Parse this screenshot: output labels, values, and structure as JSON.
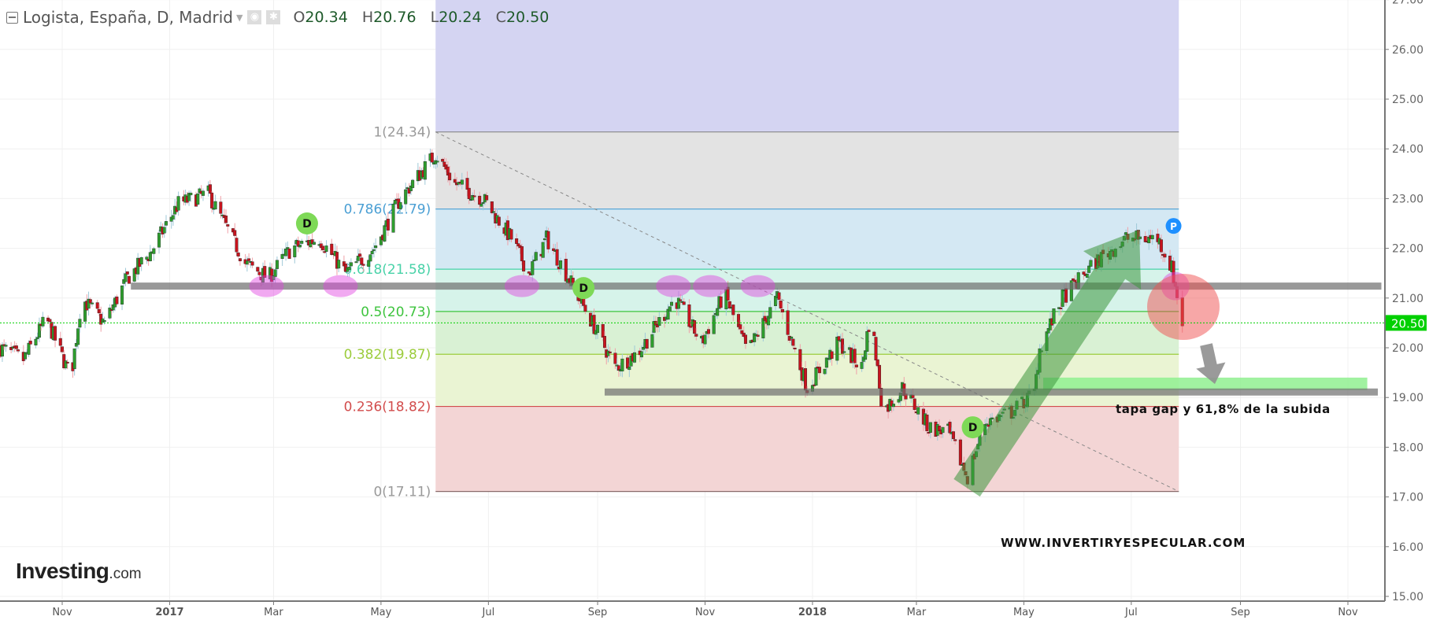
{
  "header": {
    "title": "Logista, España, D, Madrid",
    "open_label": "O",
    "open": "20.34",
    "high_label": "H",
    "high": "20.76",
    "low_label": "L",
    "low": "20.24",
    "close_label": "C",
    "close": "20.50",
    "icons": [
      "menu-icon",
      "visibility-icon",
      "settings-icon",
      "chevron-down-icon"
    ]
  },
  "logo": {
    "name": "Investing",
    "suffix": ".com"
  },
  "chart_data": {
    "type": "candlestick",
    "title": "Logista, España, D, Madrid",
    "ylim": [
      15,
      27
    ],
    "y_ticks": [
      "15.00",
      "16.00",
      "17.00",
      "18.00",
      "19.00",
      "20.00",
      "21.00",
      "22.00",
      "23.00",
      "24.00",
      "25.00",
      "26.00",
      "27.00"
    ],
    "x_ticks": [
      {
        "label": "Nov",
        "date": "2016-11-01"
      },
      {
        "label": "2017",
        "date": "2017-01-01"
      },
      {
        "label": "Mar",
        "date": "2017-03-01"
      },
      {
        "label": "May",
        "date": "2017-05-01"
      },
      {
        "label": "Jul",
        "date": "2017-07-01"
      },
      {
        "label": "Sep",
        "date": "2017-09-01"
      },
      {
        "label": "Nov",
        "date": "2017-11-01"
      },
      {
        "label": "2018",
        "date": "2018-01-01"
      },
      {
        "label": "Mar",
        "date": "2018-03-01"
      },
      {
        "label": "May",
        "date": "2018-05-01"
      },
      {
        "label": "Jul",
        "date": "2018-07-01"
      },
      {
        "label": "Sep",
        "date": "2018-09-01"
      },
      {
        "label": "Nov",
        "date": "2018-11-01"
      }
    ],
    "grid": true,
    "last_price": "20.50",
    "colors": {
      "up": "#2e9e2e",
      "down": "#c8141e",
      "last_price": "#00d000"
    },
    "approx_closes": [
      [
        "2016-09-27",
        20.0
      ],
      [
        "2016-10-10",
        19.76
      ],
      [
        "2016-10-23",
        20.59
      ],
      [
        "2016-11-06",
        19.4
      ],
      [
        "2016-11-12",
        21.0
      ],
      [
        "2016-11-25",
        20.5
      ],
      [
        "2016-12-08",
        21.4
      ],
      [
        "2016-12-21",
        21.9
      ],
      [
        "2017-01-06",
        22.9
      ],
      [
        "2017-01-23",
        23.1
      ],
      [
        "2017-02-01",
        22.5
      ],
      [
        "2017-02-13",
        21.7
      ],
      [
        "2017-02-26",
        21.4
      ],
      [
        "2017-03-11",
        22.0
      ],
      [
        "2017-03-27",
        22.2
      ],
      [
        "2017-04-11",
        21.5
      ],
      [
        "2017-04-27",
        22.0
      ],
      [
        "2017-05-12",
        23.0
      ],
      [
        "2017-06-01",
        23.9
      ],
      [
        "2017-06-12",
        23.3
      ],
      [
        "2017-06-28",
        23.0
      ],
      [
        "2017-07-14",
        22.2
      ],
      [
        "2017-07-24",
        21.5
      ],
      [
        "2017-08-03",
        22.2
      ],
      [
        "2017-08-14",
        21.5
      ],
      [
        "2017-09-01",
        20.3
      ],
      [
        "2017-09-11",
        19.6
      ],
      [
        "2017-09-24",
        19.9
      ],
      [
        "2017-10-15",
        21.0
      ],
      [
        "2017-10-30",
        20.1
      ],
      [
        "2017-11-12",
        21.1
      ],
      [
        "2017-11-25",
        19.9
      ],
      [
        "2017-12-12",
        21.0
      ],
      [
        "2017-12-29",
        19.2
      ],
      [
        "2018-01-16",
        20.1
      ],
      [
        "2018-01-29",
        19.6
      ],
      [
        "2018-02-03",
        20.7
      ],
      [
        "2018-02-10",
        18.7
      ],
      [
        "2018-02-21",
        19.2
      ],
      [
        "2018-03-08",
        18.4
      ],
      [
        "2018-03-19",
        18.3
      ],
      [
        "2018-03-30",
        17.4
      ],
      [
        "2018-04-09",
        18.5
      ],
      [
        "2018-04-24",
        18.7
      ],
      [
        "2018-05-07",
        19.1
      ],
      [
        "2018-05-10",
        20.0
      ],
      [
        "2018-05-23",
        21.0
      ],
      [
        "2018-06-10",
        21.7
      ],
      [
        "2018-06-28",
        22.2
      ],
      [
        "2018-07-16",
        22.2
      ],
      [
        "2018-07-24",
        21.6
      ],
      [
        "2018-07-30",
        20.5
      ]
    ],
    "fibonacci": {
      "start_date": "2017-06-01",
      "end_date": "2018-07-28",
      "levels": [
        {
          "ratio": "1",
          "price": 24.34,
          "label": "1(24.34)",
          "color": "#888888",
          "fill": "#e3e3e3"
        },
        {
          "ratio": "0.786",
          "price": 22.79,
          "label": "0.786(22.79)",
          "color": "#4a9fd4",
          "fill": "#d4e8f3"
        },
        {
          "ratio": "0.618",
          "price": 21.58,
          "label": "0.618(21.58)",
          "color": "#48d2a8",
          "fill": "#d6f3ea"
        },
        {
          "ratio": "0.5",
          "price": 20.73,
          "label": "0.5(20.73)",
          "color": "#3ec43e",
          "fill": "#d9f1d4"
        },
        {
          "ratio": "0.382",
          "price": 19.87,
          "label": "0.382(19.87)",
          "color": "#9ccc3c",
          "fill": "#eaf4d3"
        },
        {
          "ratio": "0.236",
          "price": 18.82,
          "label": "0.236(18.82)",
          "color": "#d24d4d",
          "fill": "#f3d5d5"
        },
        {
          "ratio": "0",
          "price": 17.11,
          "label": "0(17.11)",
          "color": "#8a6a6a",
          "fill": null
        }
      ],
      "above_fill": "#d4d4f2"
    },
    "support_lines": [
      {
        "price": 21.24,
        "from": "2016-12-10",
        "to": "2018-11-20"
      },
      {
        "price": 19.11,
        "from": "2017-09-05",
        "to": "2018-11-18"
      }
    ],
    "target_zone": {
      "low": 19.15,
      "high": 19.4,
      "from": "2018-05-12",
      "to": "2018-11-12",
      "color": "#90f090"
    },
    "annotations": {
      "target_text": "tapa gap y 61,8% de la subida",
      "watermark": "WWW.INVERTIRYESPECULAR.COM",
      "markers": [
        {
          "label": "D",
          "date": "2017-03-20",
          "price": 22.5,
          "color": "#7ed957"
        },
        {
          "label": "D",
          "date": "2017-08-24",
          "price": 21.2,
          "color": "#7ed957"
        },
        {
          "label": "D",
          "date": "2018-04-02",
          "price": 18.4,
          "color": "#7ed957"
        },
        {
          "label": "P",
          "date": "2018-07-25",
          "price": 22.45,
          "color": "#1e90ff"
        }
      ],
      "touch_points": [
        "2017-02-25",
        "2017-04-08",
        "2017-07-20",
        "2017-10-14",
        "2017-11-04",
        "2017-12-01",
        "2018-07-26"
      ]
    }
  }
}
